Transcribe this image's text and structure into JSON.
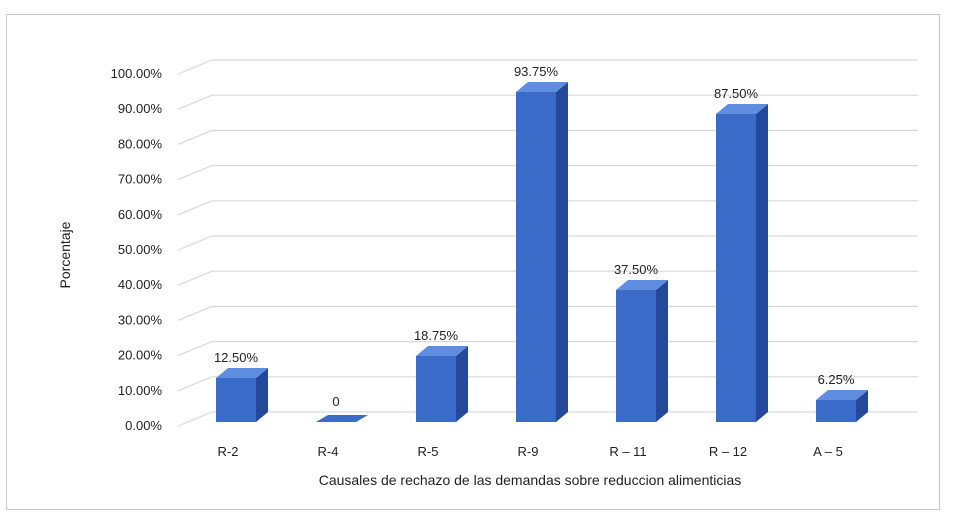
{
  "chart_data": {
    "type": "bar",
    "xlabel": "Causales de rechazo de las demandas sobre reduccion alimenticias",
    "ylabel": "Porcentaje",
    "categories": [
      "R-2",
      "R-4",
      "R-5",
      "R-9",
      "R – 11",
      "R – 12",
      "A – 5"
    ],
    "values": [
      12.5,
      0,
      18.75,
      93.75,
      37.5,
      87.5,
      6.25
    ],
    "data_labels": [
      "12.50%",
      "0",
      "18.75%",
      "93.75%",
      "37.50%",
      "87.50%",
      "6.25%"
    ],
    "y_tick_labels": [
      "0.00%",
      "10.00%",
      "20.00%",
      "30.00%",
      "40.00%",
      "50.00%",
      "60.00%",
      "70.00%",
      "80.00%",
      "90.00%",
      "100.00%"
    ],
    "ylim": [
      0,
      100
    ],
    "grid": true,
    "legend": "none",
    "style": "3d-column",
    "colors": {
      "bar_front": "#3a6bc9",
      "bar_side": "#24489a",
      "bar_top": "#5f8ee0",
      "grid": "#d9d9d9"
    }
  }
}
